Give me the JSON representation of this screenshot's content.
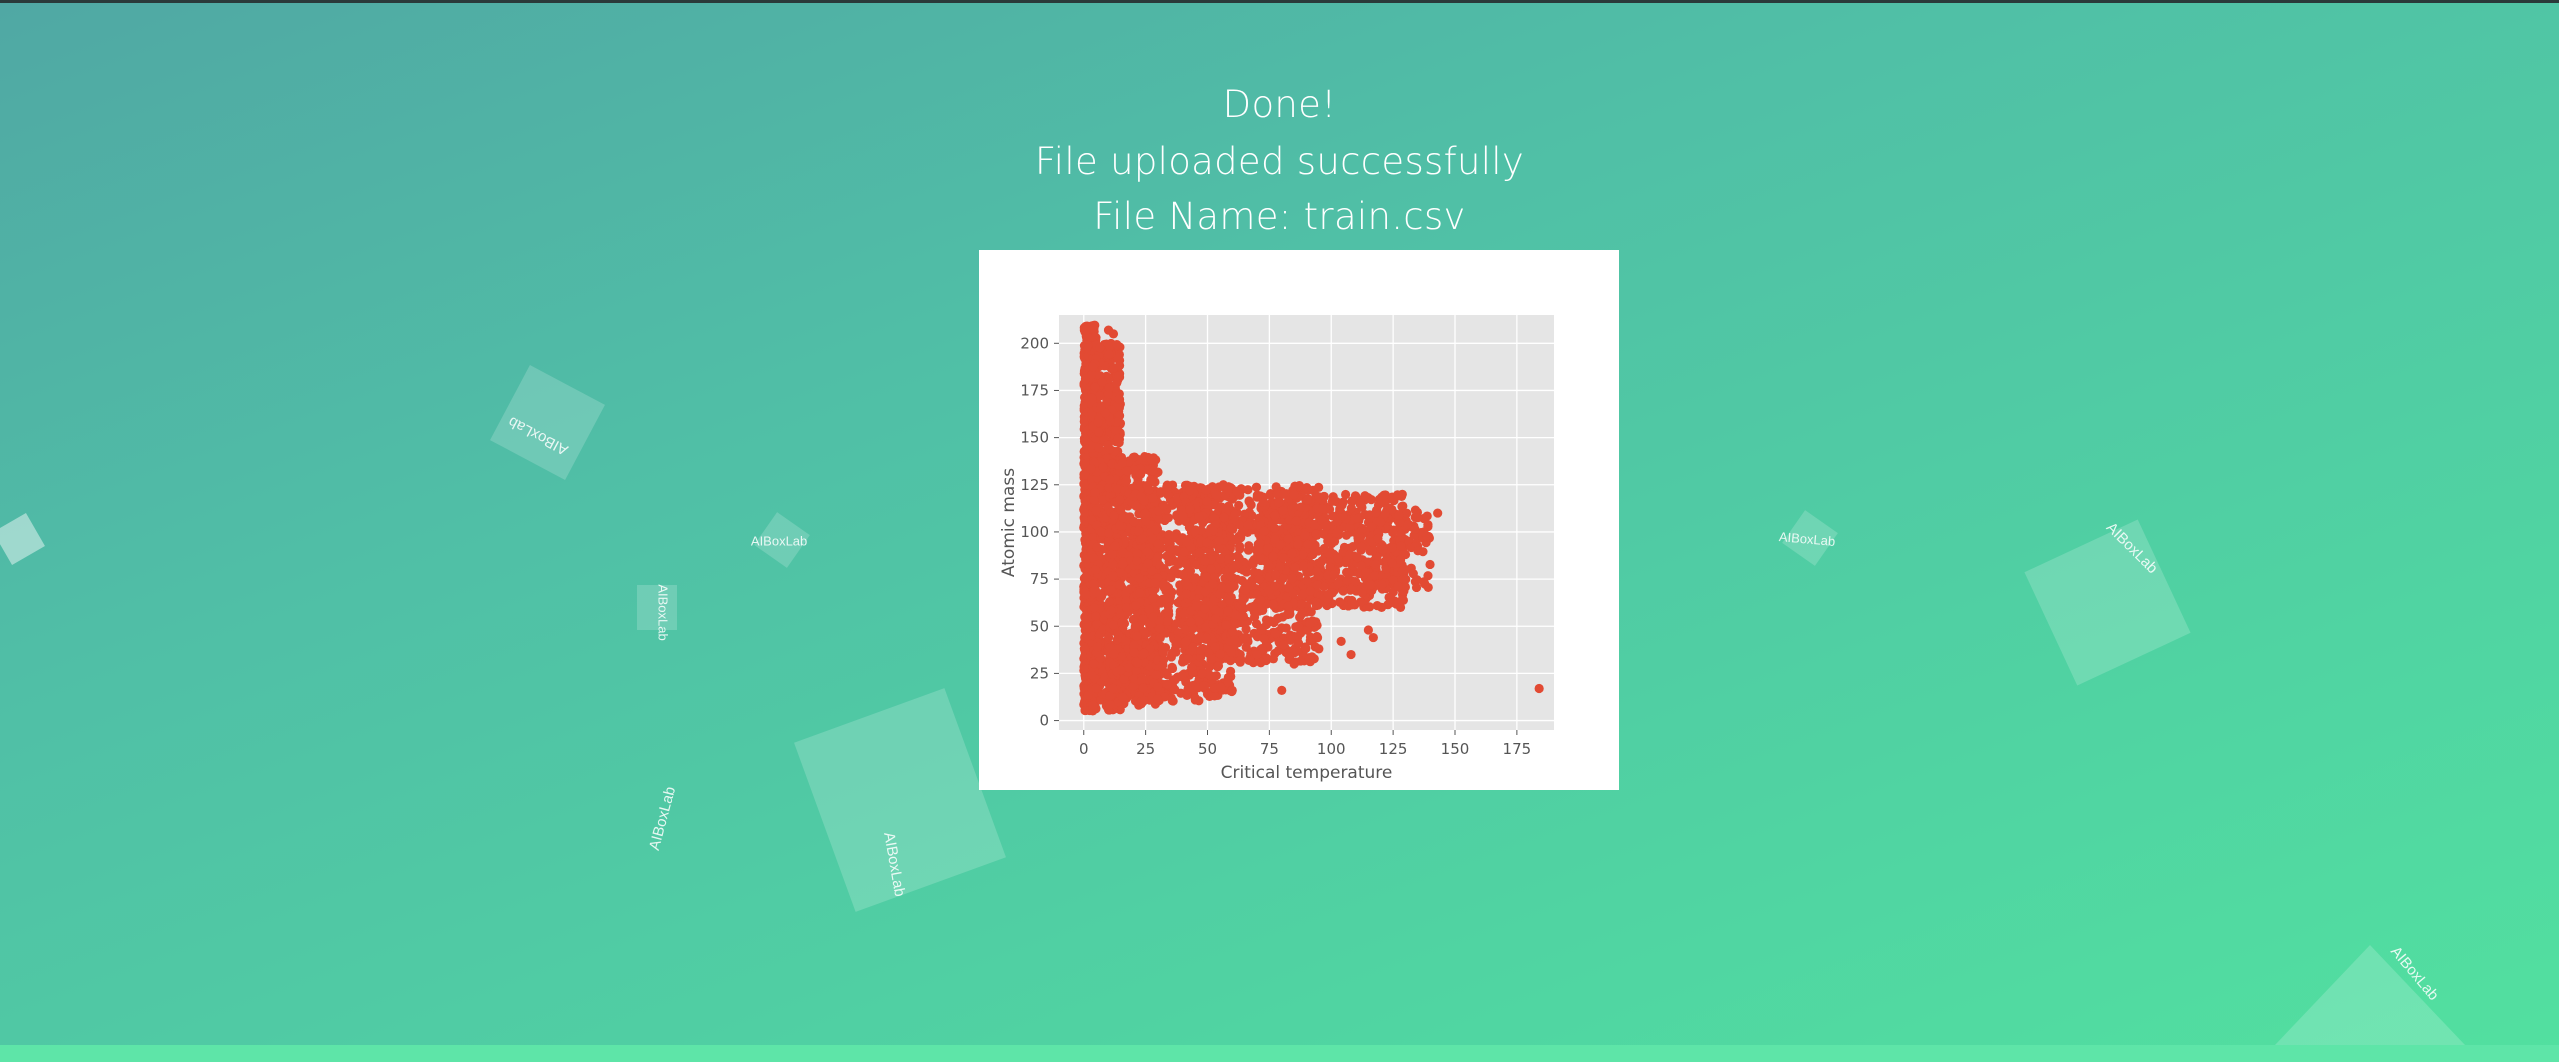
{
  "page": {
    "line1": "Done!",
    "line2": "File uploaded successfully",
    "line3": "File Name: train.csv"
  },
  "decor": {
    "watermark": "AIBoxLab"
  },
  "chart_data": {
    "type": "scatter",
    "xlabel": "Critical temperature",
    "ylabel": "Atomic mass",
    "xlim": [
      -10,
      190
    ],
    "ylim": [
      -5,
      215
    ],
    "xticks": [
      0,
      25,
      50,
      75,
      100,
      125,
      150,
      175
    ],
    "yticks": [
      0,
      25,
      50,
      75,
      100,
      125,
      150,
      175,
      200
    ],
    "grid": true,
    "color": "#E24A33",
    "background": "#E5E5E5",
    "regions": [
      {
        "x": [
          0,
          5
        ],
        "y": [
          5,
          210
        ],
        "n": 900
      },
      {
        "x": [
          3,
          15
        ],
        "y": [
          5,
          200
        ],
        "n": 700
      },
      {
        "x": [
          10,
          30
        ],
        "y": [
          8,
          140
        ],
        "n": 700
      },
      {
        "x": [
          20,
          60
        ],
        "y": [
          10,
          125
        ],
        "n": 700
      },
      {
        "x": [
          40,
          95
        ],
        "y": [
          30,
          125
        ],
        "n": 800
      },
      {
        "x": [
          70,
          130
        ],
        "y": [
          60,
          120
        ],
        "n": 600
      },
      {
        "x": [
          110,
          140
        ],
        "y": [
          70,
          112
        ],
        "n": 120
      }
    ],
    "points": [
      [
        184,
        17
      ],
      [
        80,
        16
      ],
      [
        60,
        16
      ],
      [
        108,
        35
      ],
      [
        117,
        44
      ],
      [
        104,
        42
      ],
      [
        50,
        14
      ],
      [
        45,
        12
      ],
      [
        143,
        110
      ],
      [
        135,
        90
      ],
      [
        130,
        80
      ],
      [
        128,
        60
      ],
      [
        115,
        48
      ],
      [
        95,
        38
      ],
      [
        85,
        30
      ],
      [
        70,
        35
      ],
      [
        1,
        207
      ],
      [
        10,
        207
      ],
      [
        12,
        205
      ]
    ]
  }
}
